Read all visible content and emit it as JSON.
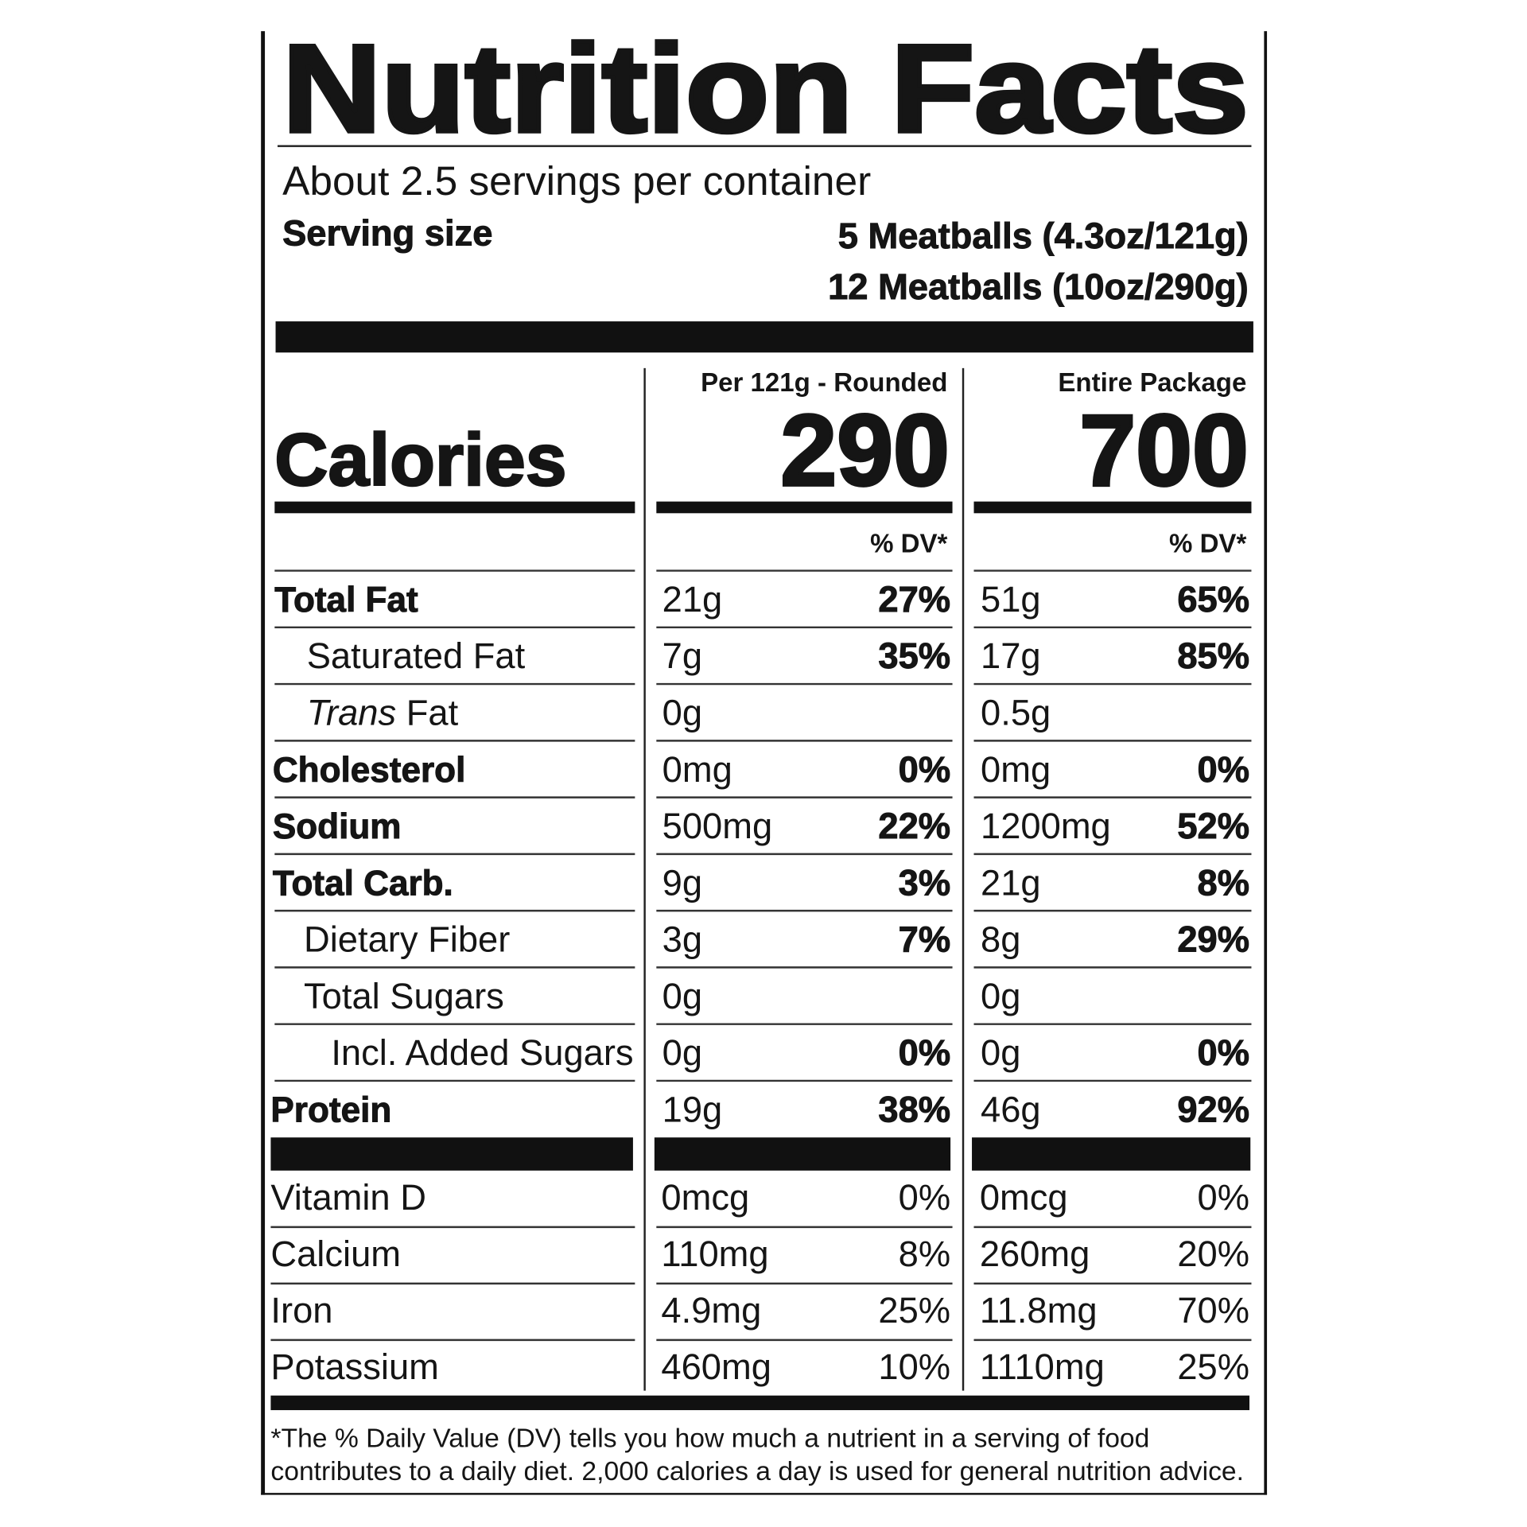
{
  "title": "Nutrition Facts",
  "servings_per_container": "About 2.5 servings per container",
  "serving_size": {
    "label": "Serving size",
    "values": [
      "5 Meatballs (4.3oz/121g)",
      "12 Meatballs (10oz/290g)"
    ]
  },
  "calories_label": "Calories",
  "columns": [
    {
      "header": "Per 121g - Rounded",
      "calories": "290",
      "dv_header": "% DV*"
    },
    {
      "header": "Entire Package",
      "calories": "700",
      "dv_header": "% DV*"
    }
  ],
  "nutrients": [
    {
      "name": "Total Fat",
      "amounts": [
        "21g",
        "51g"
      ],
      "dv": [
        "27%",
        "65%"
      ]
    },
    {
      "name": "Saturated Fat",
      "amounts": [
        "7g",
        "17g"
      ],
      "dv": [
        "35%",
        "85%"
      ]
    },
    {
      "name_italic": "Trans",
      "name": " Fat",
      "amounts": [
        "0g",
        "0.5g"
      ],
      "dv": [
        null,
        null
      ]
    },
    {
      "name": "Cholesterol",
      "amounts": [
        "0mg",
        "0mg"
      ],
      "dv": [
        "0%",
        "0%"
      ]
    },
    {
      "name": "Sodium",
      "amounts": [
        "500mg",
        "1200mg"
      ],
      "dv": [
        "22%",
        "52%"
      ]
    },
    {
      "name": "Total Carb.",
      "amounts": [
        "9g",
        "21g"
      ],
      "dv": [
        "3%",
        "8%"
      ]
    },
    {
      "name": "Dietary Fiber",
      "amounts": [
        "3g",
        "8g"
      ],
      "dv": [
        "7%",
        "29%"
      ]
    },
    {
      "name": "Total Sugars",
      "amounts": [
        "0g",
        "0g"
      ],
      "dv": [
        null,
        null
      ]
    },
    {
      "name": "Incl. Added Sugars",
      "amounts": [
        "0g",
        "0g"
      ],
      "dv": [
        "0%",
        "0%"
      ]
    },
    {
      "name": "Protein",
      "amounts": [
        "19g",
        "46g"
      ],
      "dv": [
        "38%",
        "92%"
      ]
    }
  ],
  "vitamins": [
    {
      "name": "Vitamin D",
      "amounts": [
        "0mcg",
        "0mcg"
      ],
      "dv": [
        "0%",
        "0%"
      ]
    },
    {
      "name": "Calcium",
      "amounts": [
        "110mg",
        "260mg"
      ],
      "dv": [
        "8%",
        "20%"
      ]
    },
    {
      "name": "Iron",
      "amounts": [
        "4.9mg",
        "11.8mg"
      ],
      "dv": [
        "25%",
        "70%"
      ]
    },
    {
      "name": "Potassium",
      "amounts": [
        "460mg",
        "1110mg"
      ],
      "dv": [
        "10%",
        "25%"
      ]
    }
  ],
  "footnote": [
    "*The % Daily Value (DV) tells you how much a nutrient in a serving of food",
    "contributes to a daily diet. 2,000 calories a day is used for general nutrition advice."
  ]
}
